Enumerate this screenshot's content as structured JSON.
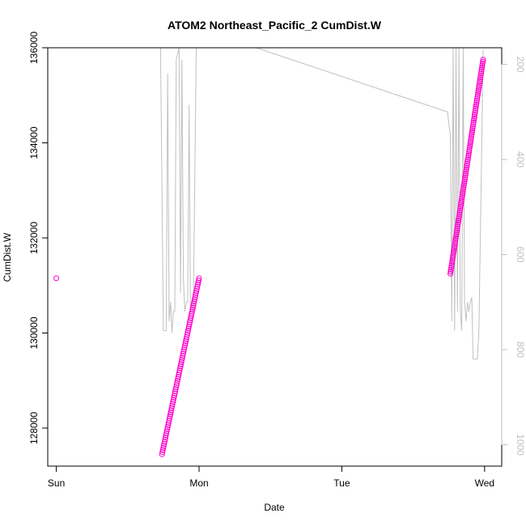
{
  "chart_data": {
    "type": "scatter",
    "title": "ATOM2 Northeast_Pacific_2 CumDist.W",
    "xlabel": "Date",
    "ylabel": "CumDist.W",
    "x_ticks": [
      "Sun",
      "Mon",
      "Tue",
      "Wed"
    ],
    "x_unit": "days",
    "xlim": [
      -0.06,
      3.12
    ],
    "ylim": [
      127200,
      136000
    ],
    "y_ticks": [
      128000,
      130000,
      132000,
      134000,
      136000
    ],
    "y2_ticks": [
      200,
      400,
      600,
      800,
      1000
    ],
    "y2lim": [
      1045,
      165
    ],
    "grid": false,
    "series": [
      {
        "kind": "points",
        "color": "#ff00cc",
        "segments": [
          {
            "x0": 0.0,
            "x1": 0.0,
            "y0": 131150,
            "y1": 131150,
            "n": 1
          },
          {
            "x0": 0.74,
            "x1": 1.0,
            "y0": 127450,
            "y1": 131150,
            "n": 85
          },
          {
            "x0": 2.76,
            "x1": 2.99,
            "y0": 131250,
            "y1": 135750,
            "n": 110
          }
        ]
      },
      {
        "kind": "line",
        "color": "#c0c0c0",
        "axis": "right",
        "points": [
          [
            0.73,
            150
          ],
          [
            0.75,
            760
          ],
          [
            0.77,
            760
          ],
          [
            0.78,
            220
          ],
          [
            0.79,
            740
          ],
          [
            0.8,
            700
          ],
          [
            0.81,
            765
          ],
          [
            0.82,
            720
          ],
          [
            0.83,
            720
          ],
          [
            0.84,
            190
          ],
          [
            0.86,
            150
          ],
          [
            0.87,
            680
          ],
          [
            0.88,
            190
          ],
          [
            0.89,
            650
          ],
          [
            0.9,
            720
          ],
          [
            0.91,
            700
          ],
          [
            0.92,
            700
          ],
          [
            0.93,
            285
          ],
          [
            0.94,
            720
          ],
          [
            0.96,
            720
          ],
          [
            0.98,
            150
          ],
          [
            1.02,
            130
          ],
          [
            1.4,
            165
          ],
          [
            2.74,
            300
          ],
          [
            2.76,
            350
          ],
          [
            2.77,
            740
          ],
          [
            2.78,
            165
          ],
          [
            2.79,
            760
          ],
          [
            2.8,
            165
          ],
          [
            2.81,
            720
          ],
          [
            2.82,
            165
          ],
          [
            2.83,
            720
          ],
          [
            2.84,
            760
          ],
          [
            2.85,
            165
          ],
          [
            2.86,
            700
          ],
          [
            2.87,
            740
          ],
          [
            2.88,
            700
          ],
          [
            2.89,
            720
          ],
          [
            2.9,
            700
          ],
          [
            2.91,
            690
          ],
          [
            2.92,
            820
          ],
          [
            2.95,
            820
          ],
          [
            2.96,
            760
          ],
          [
            2.99,
            170
          ]
        ]
      }
    ]
  }
}
